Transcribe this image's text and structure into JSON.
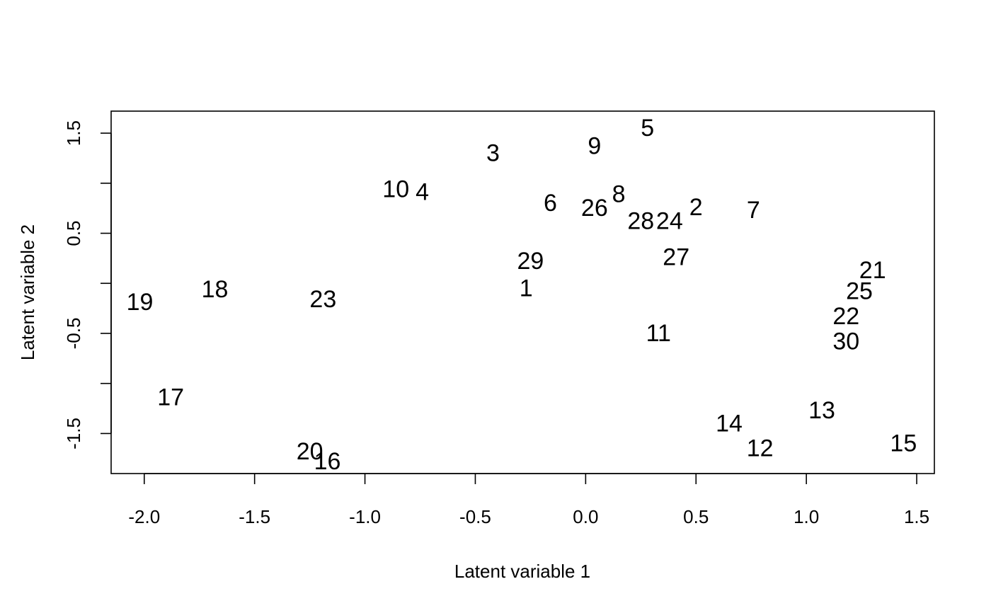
{
  "chart_data": {
    "type": "scatter",
    "title": "",
    "xlabel": "Latent variable  1",
    "ylabel": "Latent variable  2",
    "xlim": [
      -2.15,
      1.58
    ],
    "ylim": [
      -1.9,
      1.72
    ],
    "x_ticks": [
      {
        "value": -2.0,
        "label": "-2.0"
      },
      {
        "value": -1.5,
        "label": "-1.5"
      },
      {
        "value": -1.0,
        "label": "-1.0"
      },
      {
        "value": -0.5,
        "label": "-0.5"
      },
      {
        "value": 0.0,
        "label": "0.0"
      },
      {
        "value": 0.5,
        "label": "0.5"
      },
      {
        "value": 1.0,
        "label": "1.0"
      },
      {
        "value": 1.5,
        "label": "1.5"
      }
    ],
    "y_ticks": [
      {
        "value": -1.5,
        "label": "-1.5"
      },
      {
        "value": -1.0,
        "label": ""
      },
      {
        "value": -0.5,
        "label": "-0.5"
      },
      {
        "value": 0.0,
        "label": ""
      },
      {
        "value": 0.5,
        "label": "0.5"
      },
      {
        "value": 1.0,
        "label": ""
      },
      {
        "value": 1.5,
        "label": "1.5"
      }
    ],
    "grid": false,
    "marker": "text-label",
    "points": [
      {
        "label": "1",
        "x": -0.27,
        "y": -0.05
      },
      {
        "label": "2",
        "x": 0.5,
        "y": 0.76
      },
      {
        "label": "3",
        "x": -0.42,
        "y": 1.3
      },
      {
        "label": "4",
        "x": -0.74,
        "y": 0.91
      },
      {
        "label": "5",
        "x": 0.28,
        "y": 1.55
      },
      {
        "label": "6",
        "x": -0.16,
        "y": 0.8
      },
      {
        "label": "7",
        "x": 0.76,
        "y": 0.73
      },
      {
        "label": "8",
        "x": 0.15,
        "y": 0.89
      },
      {
        "label": "9",
        "x": 0.04,
        "y": 1.37
      },
      {
        "label": "10",
        "x": -0.86,
        "y": 0.94
      },
      {
        "label": "11",
        "x": 0.33,
        "y": -0.5
      },
      {
        "label": "12",
        "x": 0.79,
        "y": -1.65
      },
      {
        "label": "13",
        "x": 1.07,
        "y": -1.27
      },
      {
        "label": "14",
        "x": 0.65,
        "y": -1.4
      },
      {
        "label": "15",
        "x": 1.44,
        "y": -1.6
      },
      {
        "label": "16",
        "x": -1.17,
        "y": -1.78
      },
      {
        "label": "17",
        "x": -1.88,
        "y": -1.14
      },
      {
        "label": "18",
        "x": -1.68,
        "y": -0.06
      },
      {
        "label": "19",
        "x": -2.02,
        "y": -0.19
      },
      {
        "label": "20",
        "x": -1.25,
        "y": -1.68
      },
      {
        "label": "21",
        "x": 1.3,
        "y": 0.13
      },
      {
        "label": "22",
        "x": 1.18,
        "y": -0.33
      },
      {
        "label": "23",
        "x": -1.19,
        "y": -0.16
      },
      {
        "label": "24",
        "x": 0.38,
        "y": 0.62
      },
      {
        "label": "25",
        "x": 1.24,
        "y": -0.08
      },
      {
        "label": "26",
        "x": 0.04,
        "y": 0.75
      },
      {
        "label": "27",
        "x": 0.41,
        "y": 0.26
      },
      {
        "label": "28",
        "x": 0.25,
        "y": 0.62
      },
      {
        "label": "29",
        "x": -0.25,
        "y": 0.22
      },
      {
        "label": "30",
        "x": 1.18,
        "y": -0.58
      }
    ]
  }
}
